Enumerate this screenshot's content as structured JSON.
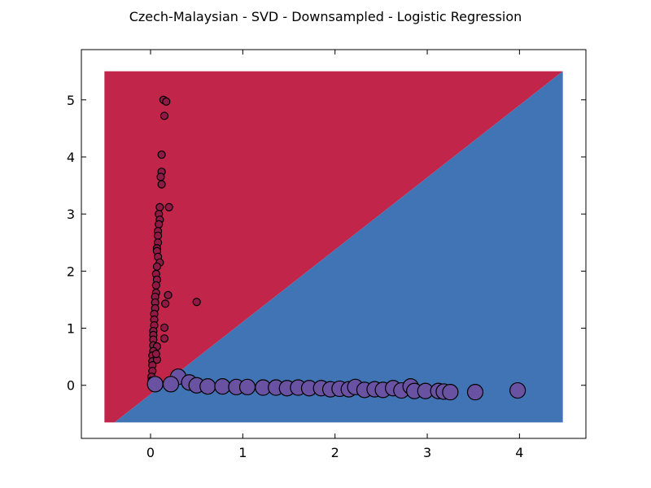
{
  "chart_data": {
    "type": "scatter",
    "title": "Czech-Malaysian - SVD - Downsampled - Logistic Regression",
    "xlabel": "",
    "ylabel": "",
    "xlim": [
      -0.75,
      4.72
    ],
    "ylim": [
      -0.93,
      5.88
    ],
    "x_ticks": [
      0,
      1,
      2,
      3,
      4
    ],
    "y_ticks": [
      0,
      1,
      2,
      3,
      4,
      5
    ],
    "grid": false,
    "legend": "none",
    "decision_region": {
      "x_range": [
        -0.5,
        4.47
      ],
      "y_range": [
        -0.65,
        5.5
      ],
      "boundary": [
        [
          -0.39,
          -0.65
        ],
        [
          4.47,
          5.5
        ]
      ],
      "upper_color": "#c1264a",
      "lower_color": "#4174b4"
    },
    "series": [
      {
        "color": "#8e1a45",
        "marker_size": "small",
        "points": [
          [
            0.14,
            5.0
          ],
          [
            0.17,
            4.97
          ],
          [
            0.15,
            4.72
          ],
          [
            0.12,
            4.04
          ],
          [
            0.12,
            3.74
          ],
          [
            0.11,
            3.65
          ],
          [
            0.12,
            3.52
          ],
          [
            0.1,
            3.12
          ],
          [
            0.2,
            3.12
          ],
          [
            0.09,
            3.0
          ],
          [
            0.1,
            2.9
          ],
          [
            0.09,
            2.82
          ],
          [
            0.08,
            2.7
          ],
          [
            0.08,
            2.62
          ],
          [
            0.08,
            2.5
          ],
          [
            0.07,
            2.4
          ],
          [
            0.07,
            2.35
          ],
          [
            0.08,
            2.25
          ],
          [
            0.1,
            2.15
          ],
          [
            0.07,
            2.08
          ],
          [
            0.06,
            1.95
          ],
          [
            0.07,
            1.85
          ],
          [
            0.06,
            1.75
          ],
          [
            0.06,
            1.62
          ],
          [
            0.05,
            1.55
          ],
          [
            0.19,
            1.58
          ],
          [
            0.05,
            1.45
          ],
          [
            0.16,
            1.43
          ],
          [
            0.5,
            1.46
          ],
          [
            0.05,
            1.35
          ],
          [
            0.04,
            1.25
          ],
          [
            0.04,
            1.15
          ],
          [
            0.04,
            1.05
          ],
          [
            0.15,
            1.01
          ],
          [
            0.03,
            0.95
          ],
          [
            0.03,
            0.88
          ],
          [
            0.15,
            0.82
          ],
          [
            0.03,
            0.8
          ],
          [
            0.03,
            0.7
          ],
          [
            0.07,
            0.68
          ],
          [
            0.03,
            0.6
          ],
          [
            0.02,
            0.52
          ],
          [
            0.02,
            0.42
          ],
          [
            0.02,
            0.35
          ],
          [
            0.07,
            0.45
          ],
          [
            0.02,
            0.25
          ],
          [
            0.01,
            0.15
          ],
          [
            0.01,
            0.08
          ],
          [
            0.01,
            0.02
          ],
          [
            0.06,
            0.55
          ]
        ]
      },
      {
        "color": "#6a52a3",
        "marker_size": "large",
        "points": [
          [
            0.05,
            0.02
          ],
          [
            0.3,
            0.15
          ],
          [
            0.22,
            0.02
          ],
          [
            0.42,
            0.05
          ],
          [
            0.5,
            0.0
          ],
          [
            0.62,
            -0.02
          ],
          [
            0.78,
            -0.02
          ],
          [
            0.93,
            -0.03
          ],
          [
            1.05,
            -0.03
          ],
          [
            1.22,
            -0.04
          ],
          [
            1.36,
            -0.04
          ],
          [
            1.48,
            -0.05
          ],
          [
            1.6,
            -0.04
          ],
          [
            1.72,
            -0.05
          ],
          [
            1.85,
            -0.05
          ],
          [
            1.95,
            -0.07
          ],
          [
            2.05,
            -0.06
          ],
          [
            2.15,
            -0.07
          ],
          [
            2.22,
            -0.03
          ],
          [
            2.32,
            -0.08
          ],
          [
            2.43,
            -0.07
          ],
          [
            2.52,
            -0.08
          ],
          [
            2.63,
            -0.05
          ],
          [
            2.72,
            -0.09
          ],
          [
            2.82,
            -0.02
          ],
          [
            2.86,
            -0.1
          ],
          [
            2.98,
            -0.1
          ],
          [
            3.12,
            -0.1
          ],
          [
            3.18,
            -0.11
          ],
          [
            3.25,
            -0.12
          ],
          [
            3.52,
            -0.12
          ],
          [
            3.98,
            -0.09
          ]
        ]
      }
    ]
  }
}
